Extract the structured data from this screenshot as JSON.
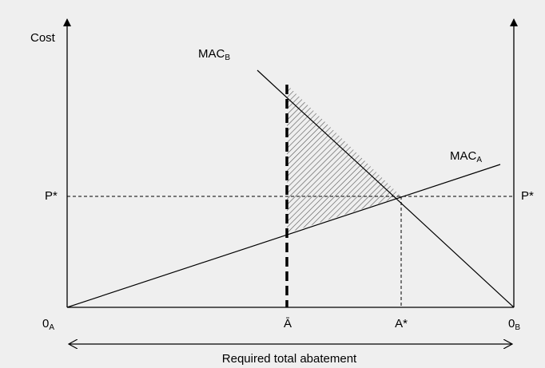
{
  "axes": {
    "y_label": "Cost",
    "x_label": "Required total abatement"
  },
  "curves": [
    {
      "main": "MAC",
      "sub": "B"
    },
    {
      "main": "MAC",
      "sub": "A"
    }
  ],
  "price": {
    "left": "P*",
    "right": "P*"
  },
  "x_marks": [
    {
      "main": "0",
      "sub": "A"
    },
    {
      "main": "Ā"
    },
    {
      "main": "A*"
    },
    {
      "main": "0",
      "sub": "B"
    }
  ]
}
